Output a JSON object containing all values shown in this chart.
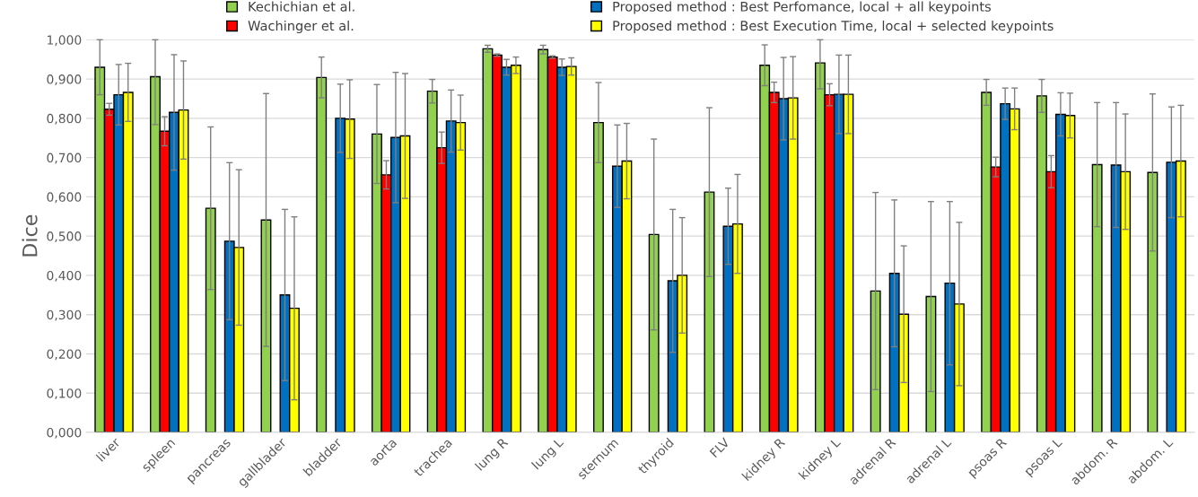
{
  "chart_data": {
    "type": "bar",
    "ylabel": "Dice",
    "categories": [
      "liver",
      "spleen",
      "pancreas",
      "gallblader",
      "bladder",
      "aorta",
      "trachea",
      "lung R",
      "lung L",
      "sternum",
      "thyroid",
      "FLV",
      "kidney R",
      "kidney L",
      "adrenal R",
      "adrenal L",
      "psoas R",
      "psoas L",
      "abdom. R",
      "abdom. L"
    ],
    "series": [
      {
        "name": "Kechichian et al.",
        "color": "#92d050",
        "values": [
          0.93,
          0.906,
          0.571,
          0.541,
          0.904,
          0.76,
          0.869,
          0.977,
          0.975,
          0.789,
          0.504,
          0.612,
          0.935,
          0.941,
          0.36,
          0.346,
          0.866,
          0.857,
          0.682,
          0.662
        ],
        "errors": [
          0.07,
          [
            0.784,
            1.0
          ],
          0.207,
          0.322,
          0.052,
          0.126,
          0.03,
          0.009,
          0.011,
          0.102,
          0.243,
          0.215,
          0.052,
          [
            0.875,
            1.0
          ],
          0.251,
          0.242,
          0.033,
          0.042,
          0.158,
          0.2
        ]
      },
      {
        "name": "Wachinger et al.",
        "color": "#ff0000",
        "values": [
          0.823,
          0.767,
          null,
          null,
          null,
          0.656,
          0.725,
          0.961,
          0.956,
          null,
          null,
          null,
          0.866,
          0.86,
          null,
          null,
          0.676,
          0.664,
          null,
          null
        ],
        "errors": [
          0.015,
          0.037,
          null,
          null,
          null,
          0.036,
          0.04,
          0.003,
          0.003,
          null,
          null,
          null,
          0.026,
          0.028,
          null,
          null,
          0.025,
          0.041,
          null,
          null
        ]
      },
      {
        "name": "Proposed method : Best Perfomance, local + all keypoints",
        "color": "#0070c0",
        "values": [
          0.86,
          0.815,
          0.487,
          0.35,
          0.8,
          0.751,
          0.793,
          0.93,
          0.93,
          0.678,
          0.386,
          0.525,
          0.85,
          0.861,
          0.405,
          0.38,
          0.837,
          0.81,
          0.681,
          0.688
        ],
        "errors": [
          0.077,
          0.147,
          0.2,
          0.218,
          0.087,
          0.166,
          0.079,
          0.02,
          0.021,
          0.105,
          0.182,
          0.097,
          0.105,
          0.1,
          0.187,
          0.208,
          0.04,
          0.055,
          0.159,
          0.141
        ]
      },
      {
        "name": "Proposed method : Best Execution Time, local + selected keypoints",
        "color": "#ffff00",
        "values": [
          0.866,
          0.821,
          0.471,
          0.316,
          0.798,
          0.755,
          0.789,
          0.935,
          0.932,
          0.691,
          0.4,
          0.531,
          0.852,
          0.861,
          0.301,
          0.327,
          0.824,
          0.807,
          0.664,
          0.691
        ],
        "errors": [
          0.074,
          0.125,
          0.198,
          0.233,
          0.1,
          0.159,
          0.07,
          0.021,
          0.022,
          0.096,
          0.147,
          0.126,
          0.105,
          0.1,
          0.174,
          0.208,
          0.053,
          0.057,
          0.147,
          0.142
        ]
      }
    ],
    "ylim": [
      0,
      1
    ],
    "yticks": [
      {
        "value": 0,
        "label": "0,000"
      },
      {
        "value": 0.1,
        "label": "0,100"
      },
      {
        "value": 0.2,
        "label": "0,200"
      },
      {
        "value": 0.3,
        "label": "0,300"
      },
      {
        "value": 0.4,
        "label": "0,400"
      },
      {
        "value": 0.5,
        "label": "0,500"
      },
      {
        "value": 0.6,
        "label": "0,600"
      },
      {
        "value": 0.7,
        "label": "0,700"
      },
      {
        "value": 0.8,
        "label": "0,800"
      },
      {
        "value": 0.9,
        "label": "0,900"
      },
      {
        "value": 1,
        "label": "1,000"
      }
    ],
    "grid": "y",
    "legend": "top"
  }
}
